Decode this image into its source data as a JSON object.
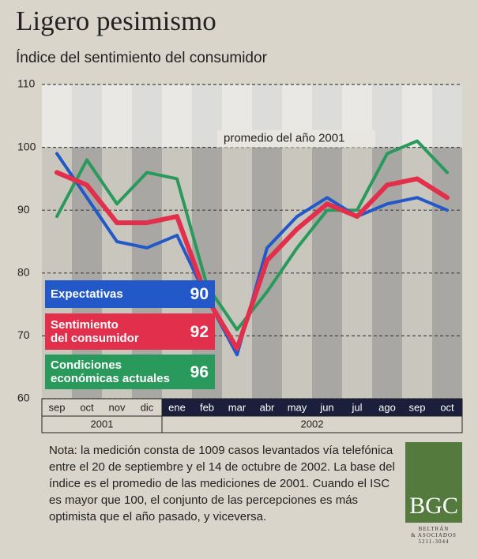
{
  "chart_data": {
    "type": "line",
    "title": "Ligero pesimismo",
    "subtitle": "Índice del sentimiento del consumidor",
    "annotation": "promedio del año 2001",
    "categories": [
      "sep",
      "oct",
      "nov",
      "dic",
      "ene",
      "feb",
      "mar",
      "abr",
      "may",
      "jun",
      "jul",
      "ago",
      "sep",
      "oct"
    ],
    "x_groups": [
      {
        "label": "2001",
        "span": 4
      },
      {
        "label": "2002",
        "span": 10
      }
    ],
    "ylim": [
      60,
      110
    ],
    "yticks": [
      60,
      70,
      80,
      90,
      100,
      110
    ],
    "grid": true,
    "series": [
      {
        "name": "Expectativas",
        "color": "#2358c8",
        "values": [
          99,
          92,
          85,
          84,
          86,
          76,
          67,
          84,
          89,
          92,
          89,
          91,
          92,
          90
        ]
      },
      {
        "name": "Sentimiento\ndel consumidor",
        "color": "#e2304c",
        "values": [
          96,
          94,
          88,
          88,
          89,
          76,
          68,
          82,
          87,
          91,
          89,
          94,
          95,
          92
        ]
      },
      {
        "name": "Condiciones\neconómicas actuales",
        "color": "#2a9a5c",
        "values": [
          89,
          98,
          91,
          96,
          95,
          78,
          71,
          77,
          84,
          90,
          90,
          99,
          101,
          96
        ]
      }
    ]
  },
  "footnote": "Nota: la medición consta de 1009 casos levantados vía telefónica entre el 20 de septiembre y el 14 de octubre de 2002. La base del índice es el promedio de las mediciones de 2001. Cuando el ISC es mayor que 100, el conjunto de las percepciones es más optimista que el año pasado, y viceversa.",
  "logo": {
    "name": "BGC",
    "line1": "BELTRÁN",
    "line2": "& ASOCIADOS",
    "phone": "5211-3044"
  }
}
